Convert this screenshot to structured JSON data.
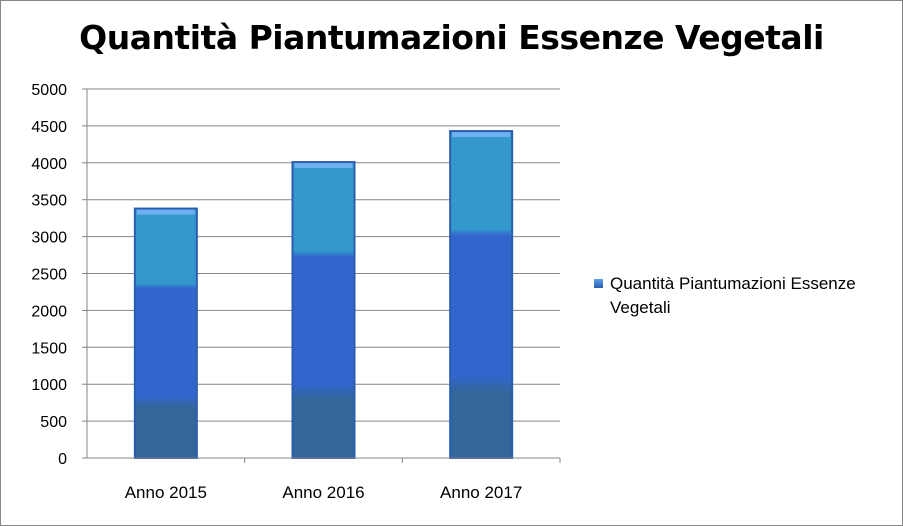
{
  "chart_data": {
    "type": "bar",
    "title": "Quantità Piantumazioni Essenze Vegetali",
    "categories": [
      "Anno 2015",
      "Anno 2016",
      "Anno 2017"
    ],
    "series": [
      {
        "name": "Quantità Piantumazioni Essenze Vegetali",
        "values": [
          3380,
          4010,
          4430
        ]
      }
    ],
    "ylim": [
      0,
      5000
    ],
    "yticks": [
      "0",
      "500",
      "1000",
      "1500",
      "2000",
      "2500",
      "3000",
      "3500",
      "4000",
      "4500",
      "5000"
    ],
    "grid": true,
    "legend": "right",
    "colors": {
      "bar_top": "#3399cc",
      "bar_mid": "#3366cc",
      "bar_bottom": "#336699"
    }
  }
}
